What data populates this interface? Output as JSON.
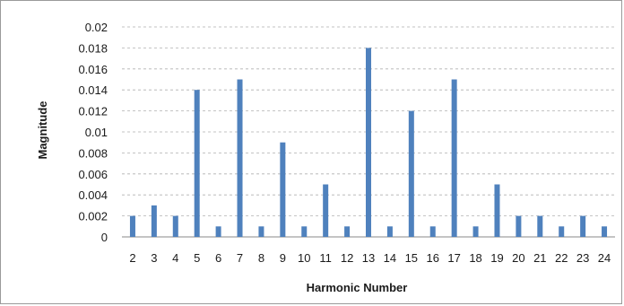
{
  "chart_data": {
    "type": "bar",
    "title": "",
    "xlabel": "Harmonic Number",
    "ylabel": "Magnitude",
    "categories": [
      "2",
      "3",
      "4",
      "5",
      "6",
      "7",
      "8",
      "9",
      "10",
      "11",
      "12",
      "13",
      "14",
      "15",
      "16",
      "17",
      "18",
      "19",
      "20",
      "21",
      "22",
      "23",
      "24"
    ],
    "values": [
      0.002,
      0.003,
      0.002,
      0.014,
      0.001,
      0.015,
      0.001,
      0.009,
      0.001,
      0.005,
      0.001,
      0.018,
      0.001,
      0.012,
      0.001,
      0.015,
      0.001,
      0.005,
      0.002,
      0.002,
      0.001,
      0.002,
      0.001
    ],
    "ylim": [
      0,
      0.02
    ],
    "yticks": [
      "0",
      "0.002",
      "0.004",
      "0.006",
      "0.008",
      "0.01",
      "0.012",
      "0.014",
      "0.016",
      "0.018",
      "0.02"
    ],
    "grid": true,
    "legend": "none",
    "colors": {
      "bar": "#4f81bd",
      "grid": "#b0b0b0",
      "axis": "#888888"
    }
  }
}
